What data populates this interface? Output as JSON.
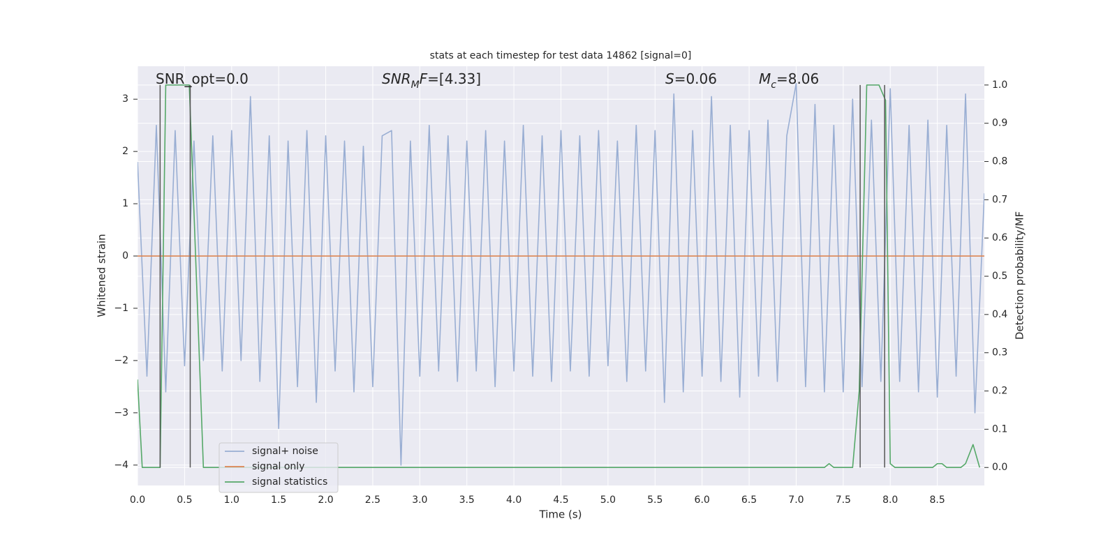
{
  "chart_data": {
    "type": "line",
    "title": "stats at each timestep for test data 14862 [signal=0]",
    "xlabel": "Time (s)",
    "ylabel": "Whitened strain",
    "y2label": "Detection probability/MF",
    "xlim": [
      0,
      9.0
    ],
    "ylim": [
      -4.39,
      3.63
    ],
    "y2lim": [
      -0.047,
      1.049
    ],
    "xticks": [
      {
        "value": 0,
        "label": "0.0"
      },
      {
        "value": 0.5,
        "label": "0.5"
      },
      {
        "value": 1,
        "label": "1.0"
      },
      {
        "value": 1.5,
        "label": "1.5"
      },
      {
        "value": 2,
        "label": "2.0"
      },
      {
        "value": 2.5,
        "label": "2.5"
      },
      {
        "value": 3,
        "label": "3.0"
      },
      {
        "value": 3.5,
        "label": "3.5"
      },
      {
        "value": 4,
        "label": "4.0"
      },
      {
        "value": 4.5,
        "label": "4.5"
      },
      {
        "value": 5,
        "label": "5.0"
      },
      {
        "value": 5.5,
        "label": "5.5"
      },
      {
        "value": 6,
        "label": "6.0"
      },
      {
        "value": 6.5,
        "label": "6.5"
      },
      {
        "value": 7,
        "label": "7.0"
      },
      {
        "value": 7.5,
        "label": "7.5"
      },
      {
        "value": 8,
        "label": "8.0"
      },
      {
        "value": 8.5,
        "label": "8.5"
      }
    ],
    "yticks": [
      {
        "value": -4,
        "label": "−4"
      },
      {
        "value": -3,
        "label": "−3"
      },
      {
        "value": -2,
        "label": "−2"
      },
      {
        "value": -1,
        "label": "−1"
      },
      0,
      1,
      2,
      3
    ],
    "y2ticks": [
      {
        "value": 0,
        "label": "0.0"
      },
      0.1,
      0.2,
      0.3,
      0.4,
      0.5,
      0.6,
      0.7,
      0.8,
      0.9,
      {
        "value": 1,
        "label": "1.0"
      }
    ],
    "grid": true,
    "legend": "lower left",
    "series": [
      {
        "name": "signal+ noise",
        "color": "#99aed3",
        "x": [
          0,
          0.1,
          0.2,
          0.3,
          0.4,
          0.5,
          0.6,
          0.7,
          0.8,
          0.9,
          1.0,
          1.1,
          1.2,
          1.3,
          1.4,
          1.5,
          1.6,
          1.7,
          1.8,
          1.9,
          2.0,
          2.1,
          2.2,
          2.3,
          2.4,
          2.5,
          2.6,
          2.7,
          2.8,
          2.9,
          3.0,
          3.1,
          3.2,
          3.3,
          3.4,
          3.5,
          3.6,
          3.7,
          3.8,
          3.9,
          4.0,
          4.1,
          4.2,
          4.3,
          4.4,
          4.5,
          4.6,
          4.7,
          4.8,
          4.9,
          5.0,
          5.1,
          5.2,
          5.3,
          5.4,
          5.5,
          5.6,
          5.7,
          5.8,
          5.9,
          6.0,
          6.1,
          6.2,
          6.3,
          6.4,
          6.5,
          6.6,
          6.7,
          6.8,
          6.9,
          7.0,
          7.1,
          7.2,
          7.3,
          7.4,
          7.5,
          7.6,
          7.7,
          7.8,
          7.9,
          8.0,
          8.1,
          8.2,
          8.3,
          8.4,
          8.5,
          8.6,
          8.7,
          8.8,
          8.9,
          9.0
        ],
        "values": [
          1.8,
          -2.3,
          2.5,
          -2.6,
          2.4,
          -2.1,
          2.2,
          -2.0,
          2.3,
          -2.2,
          2.4,
          -2.0,
          3.05,
          -2.4,
          2.3,
          -3.3,
          2.2,
          -2.5,
          2.4,
          -2.8,
          2.3,
          -2.2,
          2.2,
          -2.6,
          2.1,
          -2.5,
          2.3,
          2.4,
          -4.0,
          2.2,
          -2.3,
          2.5,
          -2.2,
          2.3,
          -2.4,
          2.2,
          -2.2,
          2.4,
          -2.5,
          2.2,
          -2.2,
          2.5,
          -2.3,
          2.3,
          -2.4,
          2.4,
          -2.2,
          2.3,
          -2.3,
          2.4,
          -2.1,
          2.2,
          -2.4,
          2.5,
          -2.2,
          2.4,
          -2.8,
          3.1,
          -2.6,
          2.4,
          -2.3,
          3.05,
          -2.4,
          2.5,
          -2.7,
          2.4,
          -2.3,
          2.6,
          -2.4,
          2.3,
          3.3,
          -2.5,
          2.9,
          -2.6,
          2.5,
          -2.6,
          3.0,
          -2.5,
          2.6,
          -2.4,
          3.2,
          -2.4,
          2.5,
          -2.6,
          2.6,
          -2.7,
          2.5,
          -2.3,
          3.1,
          -3.0,
          1.2
        ]
      },
      {
        "name": "signal only",
        "color": "#dd8452",
        "x": [
          0,
          9.0
        ],
        "values": [
          0,
          0
        ]
      },
      {
        "name": "signal statistics",
        "color": "#55a868",
        "axis": "y2",
        "x": [
          0,
          0.05,
          0.24,
          0.3,
          0.55,
          0.7,
          2.6,
          2.8,
          7.3,
          7.35,
          7.4,
          7.6,
          7.67,
          7.75,
          7.88,
          7.95,
          8.0,
          8.05,
          8.45,
          8.5,
          8.55,
          8.6,
          8.75,
          8.8,
          8.88,
          8.95
        ],
        "values": [
          0.23,
          0.0,
          0.0,
          1.0,
          1.0,
          0.0,
          0.0,
          0.0,
          0.0,
          0.01,
          0.0,
          0.0,
          0.2,
          1.0,
          1.0,
          0.96,
          0.01,
          0.0,
          0.0,
          0.01,
          0.01,
          0.0,
          0.0,
          0.01,
          0.06,
          0.0
        ]
      }
    ],
    "vlines": [
      0.24,
      0.56,
      7.68,
      7.94
    ],
    "vlines_y2": [
      0,
      1
    ],
    "annotations": [
      [
        {
          "text": "SNR_opt=0.0"
        }
      ],
      [
        {
          "text": "SNR",
          "italic": true
        },
        {
          "text": "M",
          "italic": true,
          "sub": true
        },
        {
          "text": "F",
          "italic": true
        },
        {
          "text": "=[4.33]"
        }
      ],
      [
        {
          "text": "S",
          "italic": true
        },
        {
          "text": "=0.06"
        }
      ],
      [
        {
          "text": "M",
          "italic": true
        },
        {
          "text": "c",
          "italic": true,
          "sub": true
        },
        {
          "text": "=8.06"
        }
      ]
    ]
  }
}
